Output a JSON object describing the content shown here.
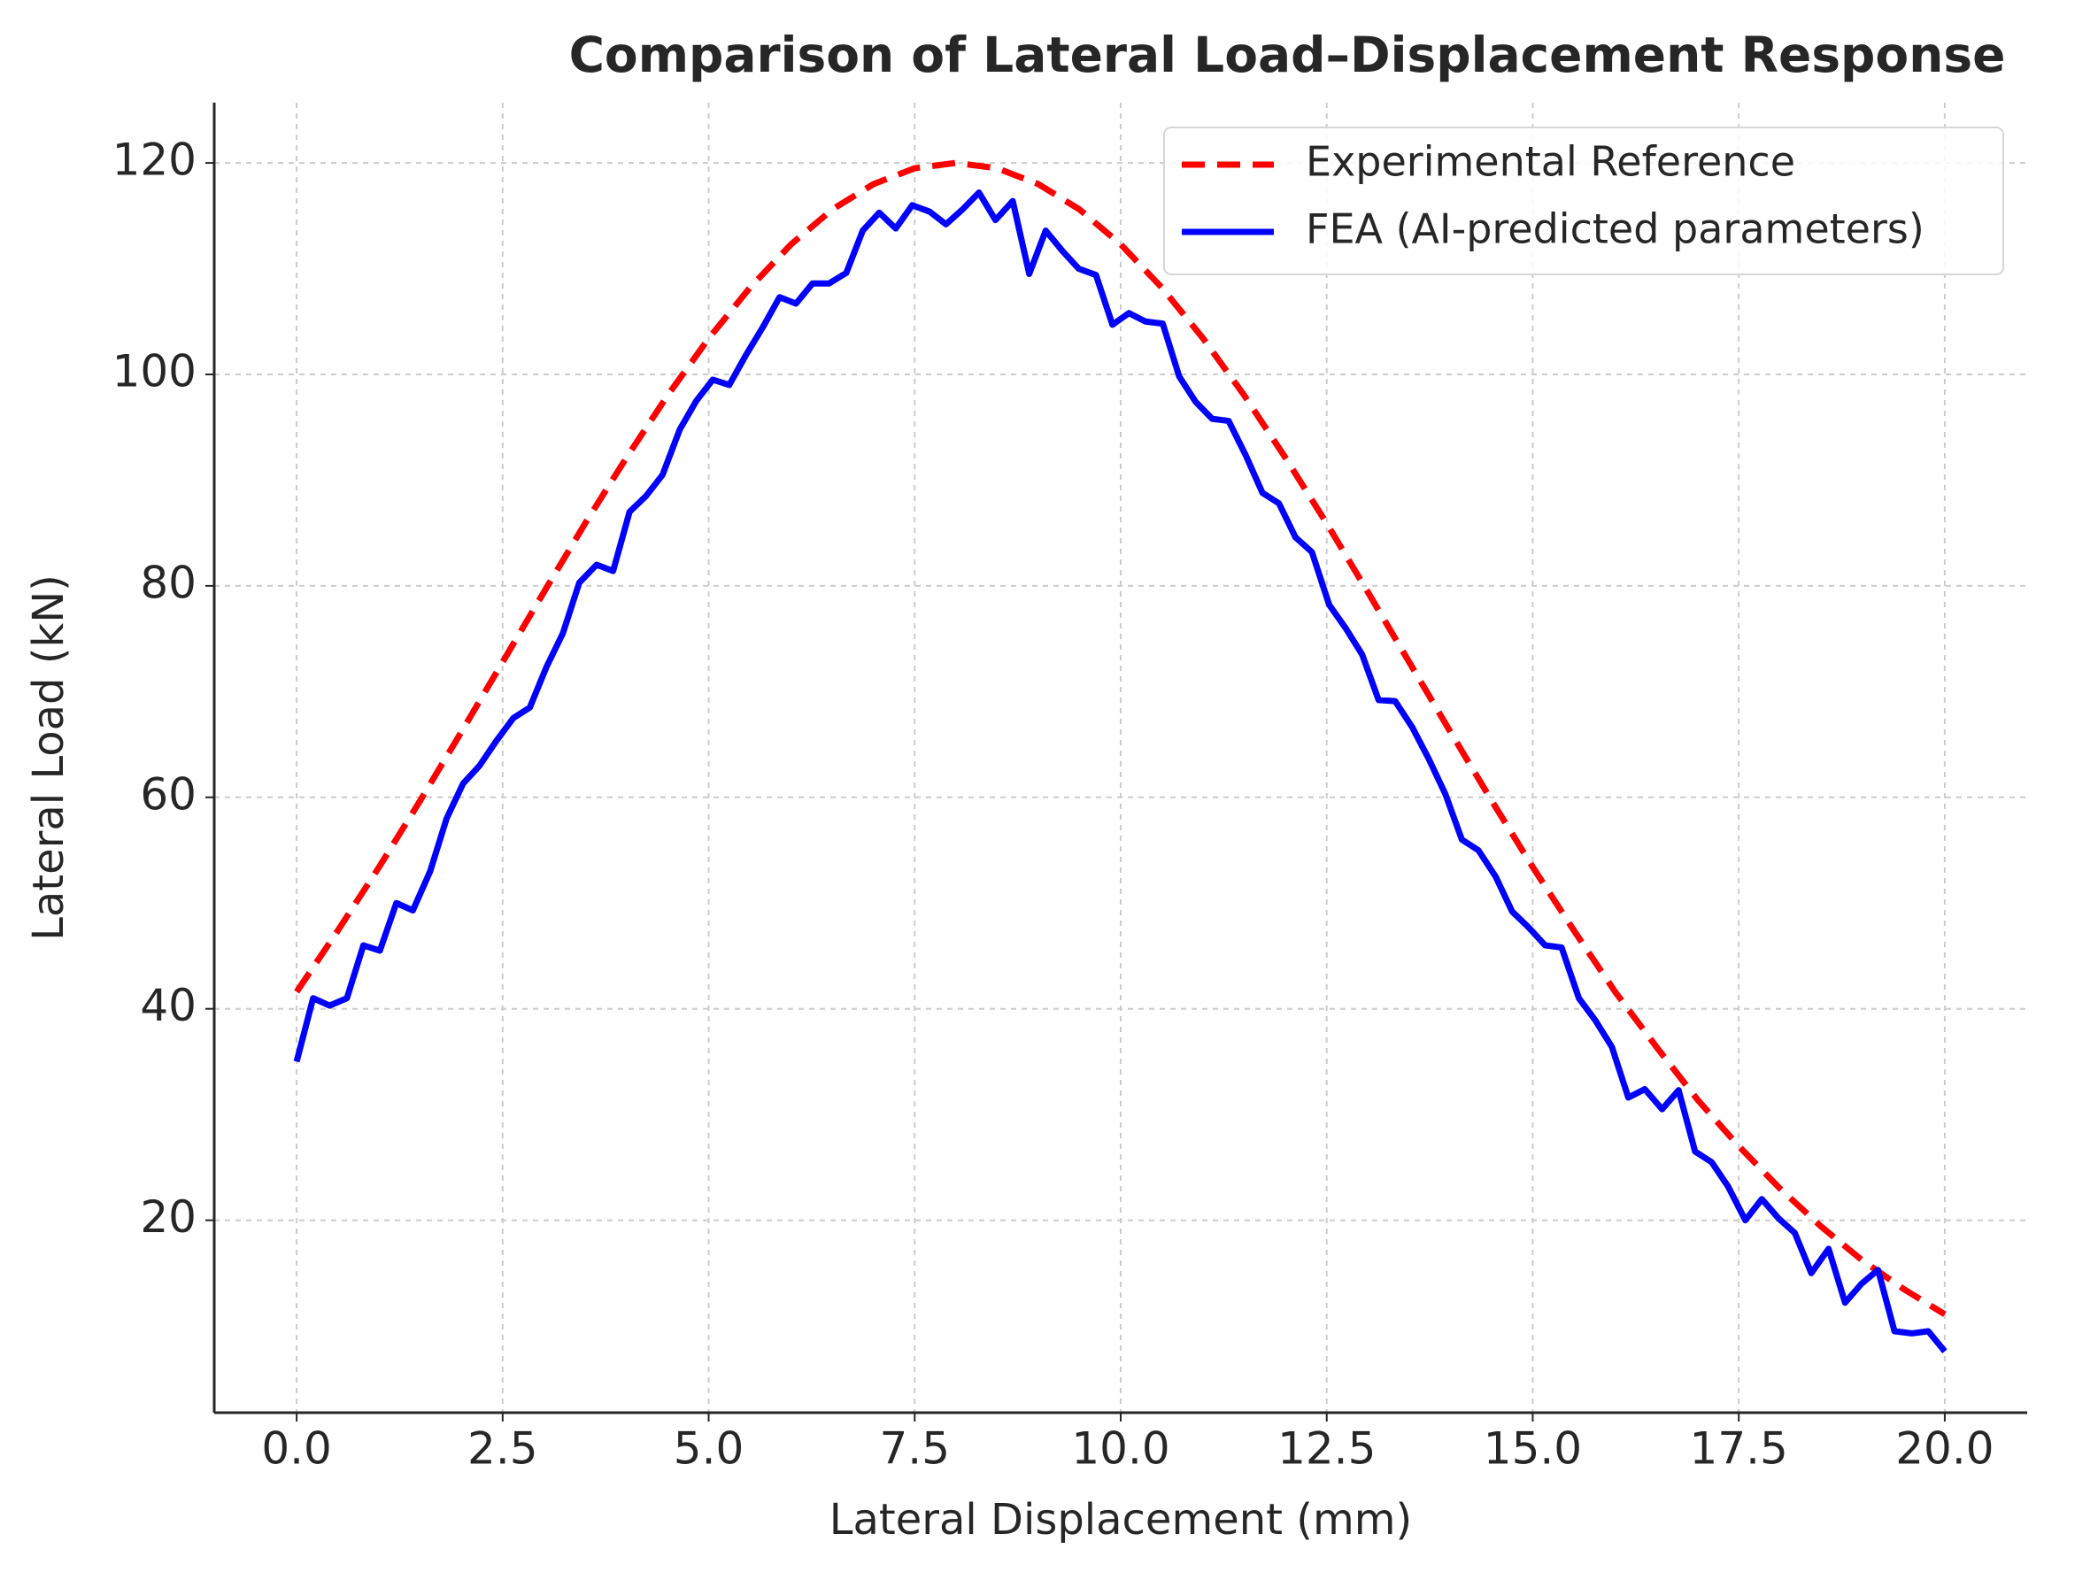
{
  "chart_data": {
    "type": "line",
    "title": "Comparison of Lateral Load–Displacement Response",
    "x_label": "Lateral Displacement (mm)",
    "y_label": "Lateral Load (kN)",
    "xlim": [
      -1,
      21
    ],
    "ylim": [
      1.8,
      125.7
    ],
    "xticks": [
      {
        "value": 0,
        "label": "0.0"
      },
      2.5,
      {
        "value": 5,
        "label": "5.0"
      },
      7.5,
      {
        "value": 10,
        "label": "10.0"
      },
      12.5,
      {
        "value": 15,
        "label": "15.0"
      },
      17.5,
      {
        "value": 20,
        "label": "20.0"
      }
    ],
    "yticks": [
      20,
      40,
      60,
      80,
      100,
      120
    ],
    "grid": true,
    "legend": "upper right",
    "series": [
      {
        "name": "Experimental Reference",
        "color": "#ff0000",
        "dashed": true,
        "x": [
          0,
          0.5,
          1,
          1.5,
          2,
          2.5,
          3,
          3.5,
          4,
          4.5,
          5,
          5.5,
          6,
          6.5,
          7,
          7.5,
          8,
          8.5,
          9,
          9.5,
          10,
          10.5,
          11,
          11.5,
          12,
          12.5,
          13,
          13.5,
          14,
          14.5,
          15,
          15.5,
          16,
          16.5,
          17,
          17.5,
          18,
          18.5,
          19,
          19.5,
          20
        ],
        "values": [
          41.6,
          47.4,
          53.4,
          59.7,
          66.2,
          72.8,
          79.4,
          85.9,
          92.1,
          98.0,
          103.4,
          108.2,
          112.3,
          115.6,
          118.0,
          119.5,
          120,
          119.5,
          118.0,
          115.6,
          112.3,
          108.2,
          103.4,
          98.0,
          92.1,
          85.9,
          79.4,
          72.8,
          66.2,
          59.7,
          53.4,
          47.4,
          41.6,
          36.4,
          31.4,
          27.0,
          23.0,
          19.4,
          16.2,
          13.5,
          11.1
        ]
      },
      {
        "name": "FEA (AI-predicted parameters)",
        "color": "#0000ff",
        "dashed": false,
        "x": [
          0,
          0.2,
          0.4,
          0.61,
          0.81,
          1.01,
          1.21,
          1.41,
          1.62,
          1.82,
          2.02,
          2.22,
          2.42,
          2.63,
          2.83,
          3.03,
          3.23,
          3.43,
          3.64,
          3.84,
          4.04,
          4.24,
          4.44,
          4.65,
          4.85,
          5.05,
          5.25,
          5.45,
          5.66,
          5.86,
          6.06,
          6.26,
          6.46,
          6.67,
          6.87,
          7.07,
          7.27,
          7.47,
          7.68,
          7.88,
          8.08,
          8.28,
          8.48,
          8.69,
          8.89,
          9.09,
          9.29,
          9.49,
          9.7,
          9.9,
          10.1,
          10.3,
          10.51,
          10.71,
          10.91,
          11.11,
          11.31,
          11.52,
          11.72,
          11.92,
          12.12,
          12.32,
          12.53,
          12.73,
          12.93,
          13.13,
          13.33,
          13.54,
          13.74,
          13.94,
          14.14,
          14.34,
          14.55,
          14.75,
          14.95,
          15.15,
          15.35,
          15.56,
          15.76,
          15.96,
          16.16,
          16.36,
          16.57,
          16.77,
          16.97,
          17.17,
          17.37,
          17.58,
          17.78,
          17.98,
          18.18,
          18.38,
          18.59,
          18.79,
          18.99,
          19.19,
          19.39,
          19.6,
          19.8,
          20
        ],
        "values": [
          35,
          41,
          40.3,
          41,
          46,
          45.5,
          50,
          49.3,
          53,
          58,
          61.3,
          63,
          65.3,
          67.5,
          68.5,
          72.3,
          75.5,
          80.3,
          82,
          81.4,
          87,
          88.5,
          90.5,
          94.8,
          97.5,
          99.5,
          99,
          101.8,
          104.5,
          107.3,
          106.7,
          108.6,
          108.6,
          109.6,
          113.6,
          115.3,
          113.8,
          116,
          115.4,
          114.2,
          115.6,
          117.2,
          114.6,
          116.4,
          109.5,
          113.6,
          111.7,
          110,
          109.4,
          104.7,
          105.8,
          105,
          104.8,
          99.8,
          97.4,
          95.8,
          95.6,
          92.3,
          88.8,
          87.8,
          84.6,
          83.2,
          78.2,
          76,
          73.5,
          69.2,
          69.1,
          66.6,
          63.6,
          60.3,
          56,
          55,
          52.5,
          49.2,
          47.7,
          46,
          45.8,
          41,
          38.9,
          36.4,
          31.6,
          32.4,
          30.5,
          32.3,
          26.5,
          25.5,
          23.2,
          20,
          22,
          20.2,
          18.8,
          15,
          17.3,
          12.2,
          14,
          15.3,
          9.5,
          9.3,
          9.5,
          7.6
        ]
      }
    ]
  }
}
